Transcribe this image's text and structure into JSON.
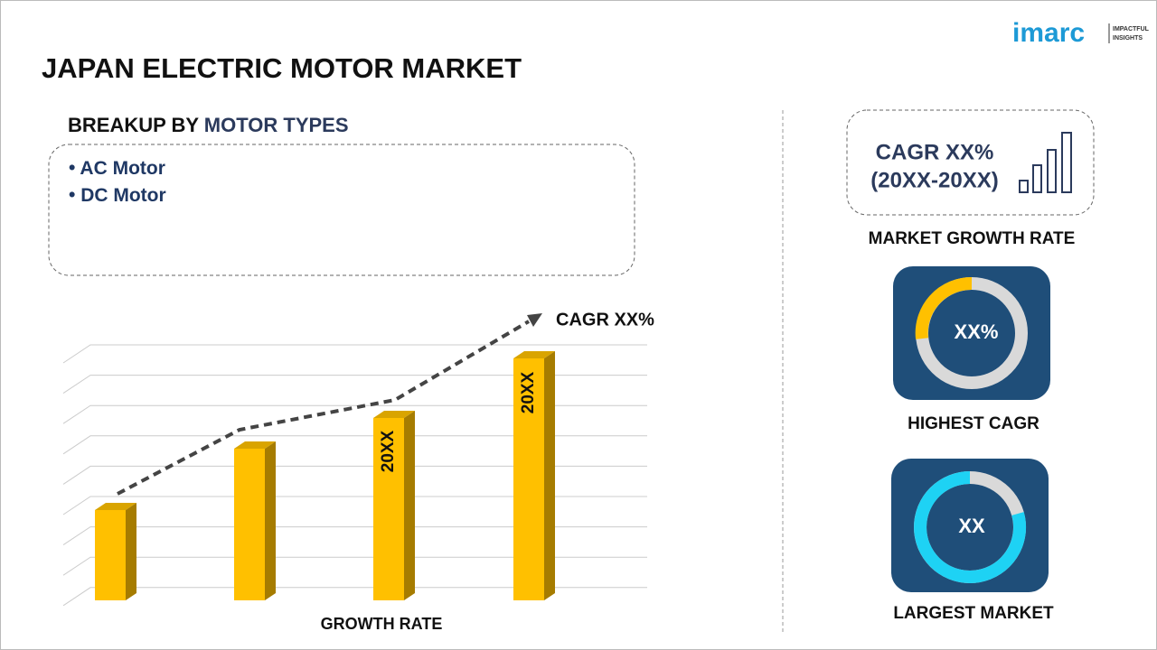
{
  "logo": {
    "name": "imarc",
    "tagline_1": "IMPACTFUL",
    "tagline_2": "INSIGHTS"
  },
  "header": {
    "title": "JAPAN ELECTRIC MOTOR MARKET"
  },
  "breakup": {
    "label": "BREAKUP BY",
    "highlight": "MOTOR TYPES",
    "items": [
      "AC Motor",
      "DC Motor"
    ]
  },
  "growth_chart": {
    "cagr": "CAGR XX%",
    "bar_labels": [
      "20XX",
      "20XX"
    ],
    "axis_label": "GROWTH RATE"
  },
  "side": {
    "cagr_line_1": "CAGR XX%",
    "cagr_line_2": "(20XX-20XX)",
    "cagr_caption": "MARKET GROWTH RATE",
    "highest_value": "XX%",
    "highest_caption": "HIGHEST CAGR",
    "largest_value": "XX",
    "largest_caption": "LARGEST MARKET"
  }
}
